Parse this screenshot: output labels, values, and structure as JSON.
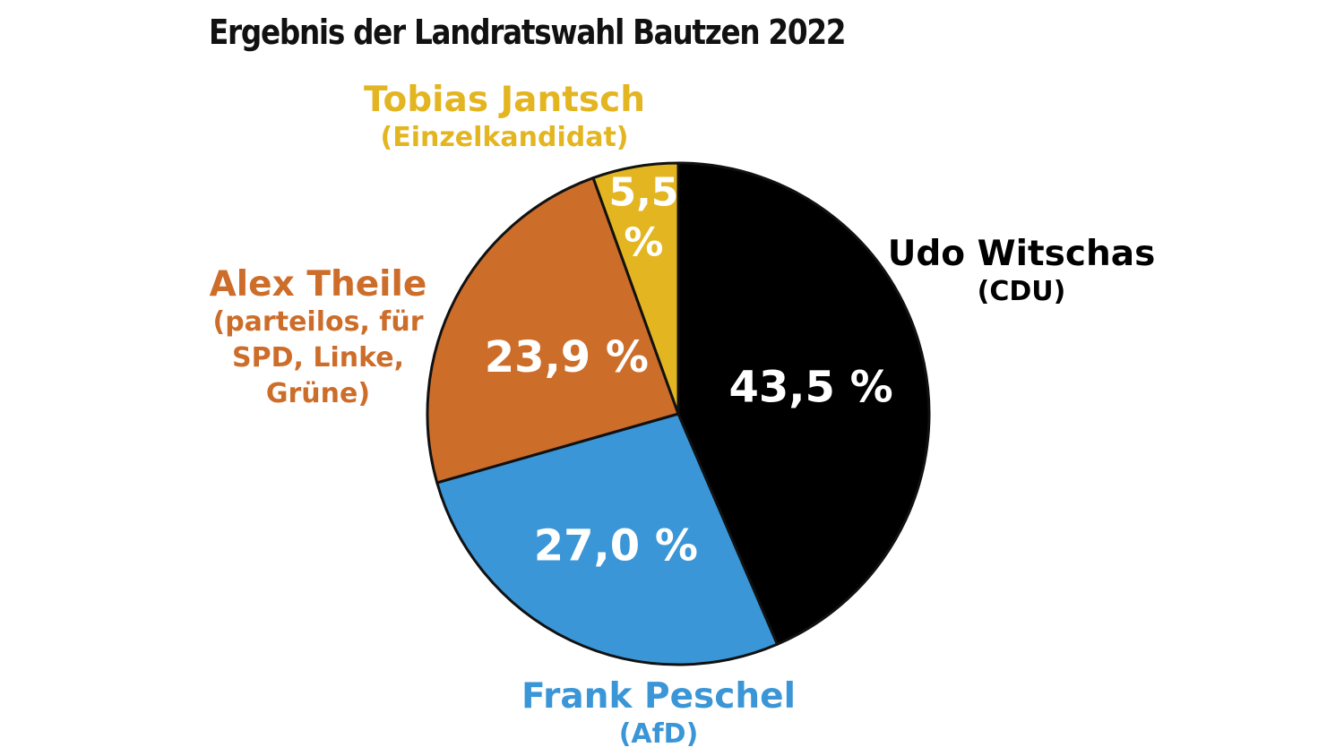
{
  "chart_data": {
    "type": "pie",
    "title": "Ergebnis der Landratswahl Bautzen 2022",
    "series": [
      {
        "name": "Udo Witschas",
        "party": "(CDU)",
        "value": 43.5,
        "label": "43,5 %",
        "color": "#000000",
        "name_color": "#000000",
        "label_color": "#ffffff"
      },
      {
        "name": "Frank Peschel",
        "party": "(AfD)",
        "value": 27.0,
        "label": "27,0 %",
        "color": "#3a96d6",
        "name_color": "#3a96d6",
        "label_color": "#ffffff"
      },
      {
        "name": "Alex Theile",
        "party": "(parteilos, für SPD, Linke, Grüne)",
        "party_lines": [
          "(parteilos, für",
          "SPD, Linke,",
          "Grüne)"
        ],
        "value": 23.9,
        "label": "23,9 %",
        "color": "#cd6d2a",
        "name_color": "#cd6d2a",
        "label_color": "#ffffff"
      },
      {
        "name": "Tobias Jantsch",
        "party": "(Einzelkandidat)",
        "value": 5.5,
        "label_lines": [
          "5,5",
          "%"
        ],
        "label": "5,5 %",
        "color": "#e3b521",
        "name_color": "#e3b521",
        "label_color": "#ffffff"
      }
    ]
  }
}
